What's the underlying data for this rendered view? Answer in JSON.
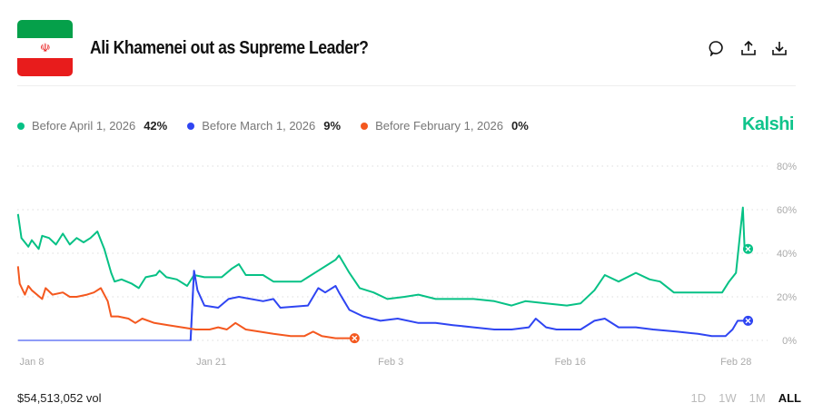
{
  "header": {
    "title": "Ali Khamenei out as Supreme Leader?",
    "flag": "iran-flag"
  },
  "actions": [
    {
      "icon": "comment-icon"
    },
    {
      "icon": "share-icon"
    },
    {
      "icon": "download-icon"
    }
  ],
  "legend": [
    {
      "label": "Before April 1, 2026",
      "value": "42%",
      "color": "#06c185"
    },
    {
      "label": "Before March 1, 2026",
      "value": "9%",
      "color": "#2f45f2"
    },
    {
      "label": "Before February 1, 2026",
      "value": "0%",
      "color": "#f4581f"
    }
  ],
  "brand": "Kalshi",
  "footer": {
    "volume": "$54,513,052 vol",
    "ranges": [
      "1D",
      "1W",
      "1M",
      "ALL"
    ],
    "selected_range": "ALL"
  },
  "chart_data": {
    "type": "line",
    "xlabel": "",
    "ylabel": "",
    "ylim": [
      0,
      80
    ],
    "y_ticks": [
      "0%",
      "20%",
      "40%",
      "60%",
      "80%"
    ],
    "y_tick_values": [
      0,
      20,
      40,
      60,
      80
    ],
    "x_ticks": [
      "Jan 8",
      "Jan 21",
      "Feb 3",
      "Feb 16",
      "Feb 28"
    ],
    "x_tick_dates": [
      "2026-01-08T00:00",
      "2026-01-21T00:00",
      "2026-02-03T00:00",
      "2026-02-16T00:00",
      "2026-02-28T00:00"
    ],
    "grid": "horizontal dotted",
    "series": [
      {
        "name": "Before April 1, 2026",
        "color": "#06c185",
        "points": [
          [
            "2026-01-07T00:00",
            58
          ],
          [
            "2026-01-07T06:00",
            47
          ],
          [
            "2026-01-07T18:00",
            43
          ],
          [
            "2026-01-08T00:00",
            46
          ],
          [
            "2026-01-08T12:00",
            42
          ],
          [
            "2026-01-08T18:00",
            48
          ],
          [
            "2026-01-09T06:00",
            47
          ],
          [
            "2026-01-09T18:00",
            44
          ],
          [
            "2026-01-10T06:00",
            49
          ],
          [
            "2026-01-10T18:00",
            44
          ],
          [
            "2026-01-11T06:00",
            47
          ],
          [
            "2026-01-11T18:00",
            45
          ],
          [
            "2026-01-12T06:00",
            47
          ],
          [
            "2026-01-12T18:00",
            50
          ],
          [
            "2026-01-13T06:00",
            42
          ],
          [
            "2026-01-13T18:00",
            31
          ],
          [
            "2026-01-14T00:00",
            27
          ],
          [
            "2026-01-14T12:00",
            28
          ],
          [
            "2026-01-15T06:00",
            26
          ],
          [
            "2026-01-15T18:00",
            24
          ],
          [
            "2026-01-16T06:00",
            29
          ],
          [
            "2026-01-17T00:00",
            30
          ],
          [
            "2026-01-17T06:00",
            32
          ],
          [
            "2026-01-17T18:00",
            29
          ],
          [
            "2026-01-18T12:00",
            28
          ],
          [
            "2026-01-19T06:00",
            25
          ],
          [
            "2026-01-19T18:00",
            30
          ],
          [
            "2026-01-20T12:00",
            29
          ],
          [
            "2026-01-21T18:00",
            29
          ],
          [
            "2026-01-22T12:00",
            33
          ],
          [
            "2026-01-23T00:00",
            35
          ],
          [
            "2026-01-23T12:00",
            30
          ],
          [
            "2026-01-24T18:00",
            30
          ],
          [
            "2026-01-25T12:00",
            27
          ],
          [
            "2026-01-27T12:00",
            27
          ],
          [
            "2026-01-28T00:00",
            29
          ],
          [
            "2026-01-28T18:00",
            32
          ],
          [
            "2026-01-29T12:00",
            35
          ],
          [
            "2026-01-30T00:00",
            37
          ],
          [
            "2026-01-30T06:00",
            39
          ],
          [
            "2026-01-31T00:00",
            31
          ],
          [
            "2026-01-31T18:00",
            24
          ],
          [
            "2026-02-01T18:00",
            22
          ],
          [
            "2026-02-02T18:00",
            19
          ],
          [
            "2026-02-04T00:00",
            20
          ],
          [
            "2026-02-05T00:00",
            21
          ],
          [
            "2026-02-06T06:00",
            19
          ],
          [
            "2026-02-07T12:00",
            19
          ],
          [
            "2026-02-09T00:00",
            19
          ],
          [
            "2026-02-10T12:00",
            18
          ],
          [
            "2026-02-11T18:00",
            16
          ],
          [
            "2026-02-12T18:00",
            18
          ],
          [
            "2026-02-14T06:00",
            17
          ],
          [
            "2026-02-15T18:00",
            16
          ],
          [
            "2026-02-16T18:00",
            17
          ],
          [
            "2026-02-17T18:00",
            23
          ],
          [
            "2026-02-18T12:00",
            30
          ],
          [
            "2026-02-19T12:00",
            27
          ],
          [
            "2026-02-20T18:00",
            31
          ],
          [
            "2026-02-21T18:00",
            28
          ],
          [
            "2026-02-22T12:00",
            27
          ],
          [
            "2026-02-23T12:00",
            22
          ],
          [
            "2026-02-24T18:00",
            22
          ],
          [
            "2026-02-25T18:00",
            22
          ],
          [
            "2026-02-27T00:00",
            22
          ],
          [
            "2026-02-27T12:00",
            27
          ],
          [
            "2026-02-28T00:00",
            31
          ],
          [
            "2026-02-28T06:00",
            46
          ],
          [
            "2026-02-28T12:00",
            61
          ],
          [
            "2026-02-28T15:00",
            42
          ],
          [
            "2026-02-28T21:00",
            42
          ]
        ]
      },
      {
        "name": "Before March 1, 2026",
        "color": "#2f45f2",
        "points": [
          [
            "2026-01-07T00:00",
            0
          ],
          [
            "2026-01-19T12:00",
            0
          ],
          [
            "2026-01-19T18:00",
            32
          ],
          [
            "2026-01-20T00:00",
            23
          ],
          [
            "2026-01-20T12:00",
            16
          ],
          [
            "2026-01-21T12:00",
            15
          ],
          [
            "2026-01-22T06:00",
            19
          ],
          [
            "2026-01-23T00:00",
            20
          ],
          [
            "2026-01-24T18:00",
            18
          ],
          [
            "2026-01-25T12:00",
            19
          ],
          [
            "2026-01-26T00:00",
            15
          ],
          [
            "2026-01-28T00:00",
            16
          ],
          [
            "2026-01-28T18:00",
            24
          ],
          [
            "2026-01-29T06:00",
            22
          ],
          [
            "2026-01-30T00:00",
            25
          ],
          [
            "2026-01-30T06:00",
            22
          ],
          [
            "2026-01-31T00:00",
            14
          ],
          [
            "2026-02-01T00:00",
            11
          ],
          [
            "2026-02-02T06:00",
            9
          ],
          [
            "2026-02-03T12:00",
            10
          ],
          [
            "2026-02-05T00:00",
            8
          ],
          [
            "2026-02-06T06:00",
            8
          ],
          [
            "2026-02-07T12:00",
            7
          ],
          [
            "2026-02-09T00:00",
            6
          ],
          [
            "2026-02-10T12:00",
            5
          ],
          [
            "2026-02-11T18:00",
            5
          ],
          [
            "2026-02-13T00:00",
            6
          ],
          [
            "2026-02-13T12:00",
            10
          ],
          [
            "2026-02-14T06:00",
            6
          ],
          [
            "2026-02-15T00:00",
            5
          ],
          [
            "2026-02-16T18:00",
            5
          ],
          [
            "2026-02-17T18:00",
            9
          ],
          [
            "2026-02-18T12:00",
            10
          ],
          [
            "2026-02-19T12:00",
            6
          ],
          [
            "2026-02-20T18:00",
            6
          ],
          [
            "2026-02-22T00:00",
            5
          ],
          [
            "2026-02-23T18:00",
            4
          ],
          [
            "2026-02-25T06:00",
            3
          ],
          [
            "2026-02-26T06:00",
            2
          ],
          [
            "2026-02-27T06:00",
            2
          ],
          [
            "2026-02-27T18:00",
            5
          ],
          [
            "2026-02-28T03:00",
            9
          ],
          [
            "2026-02-28T21:00",
            9
          ]
        ]
      },
      {
        "name": "Before February 1, 2026",
        "color": "#f4581f",
        "points": [
          [
            "2026-01-07T00:00",
            34
          ],
          [
            "2026-01-07T03:00",
            26
          ],
          [
            "2026-01-07T12:00",
            21
          ],
          [
            "2026-01-07T18:00",
            25
          ],
          [
            "2026-01-08T00:00",
            23
          ],
          [
            "2026-01-08T18:00",
            19
          ],
          [
            "2026-01-09T00:00",
            24
          ],
          [
            "2026-01-09T12:00",
            21
          ],
          [
            "2026-01-10T06:00",
            22
          ],
          [
            "2026-01-10T18:00",
            20
          ],
          [
            "2026-01-11T06:00",
            20
          ],
          [
            "2026-01-12T00:00",
            21
          ],
          [
            "2026-01-12T12:00",
            22
          ],
          [
            "2026-01-13T00:00",
            24
          ],
          [
            "2026-01-13T12:00",
            18
          ],
          [
            "2026-01-13T18:00",
            11
          ],
          [
            "2026-01-14T06:00",
            11
          ],
          [
            "2026-01-15T00:00",
            10
          ],
          [
            "2026-01-15T12:00",
            8
          ],
          [
            "2026-01-16T00:00",
            10
          ],
          [
            "2026-01-16T21:00",
            8
          ],
          [
            "2026-01-17T21:00",
            7
          ],
          [
            "2026-01-18T21:00",
            6
          ],
          [
            "2026-01-19T21:00",
            5
          ],
          [
            "2026-01-20T21:00",
            5
          ],
          [
            "2026-01-21T12:00",
            6
          ],
          [
            "2026-01-22T03:00",
            5
          ],
          [
            "2026-01-22T18:00",
            8
          ],
          [
            "2026-01-23T12:00",
            5
          ],
          [
            "2026-01-24T12:00",
            4
          ],
          [
            "2026-01-25T12:00",
            3
          ],
          [
            "2026-01-26T18:00",
            2
          ],
          [
            "2026-01-27T18:00",
            2
          ],
          [
            "2026-01-28T09:00",
            4
          ],
          [
            "2026-01-29T00:00",
            2
          ],
          [
            "2026-01-30T00:00",
            1
          ],
          [
            "2026-01-30T18:00",
            1
          ],
          [
            "2026-01-31T09:00",
            1
          ]
        ]
      }
    ]
  }
}
